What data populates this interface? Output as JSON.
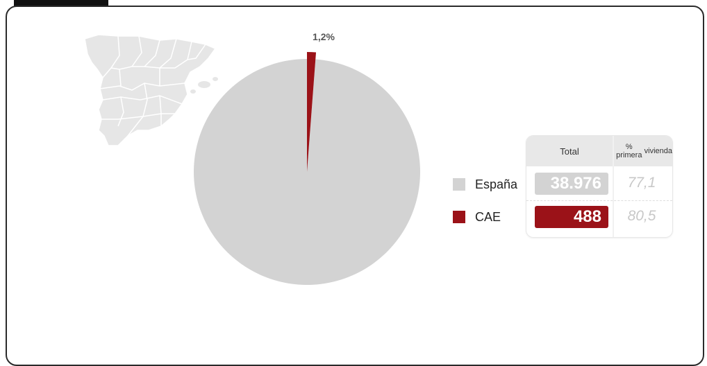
{
  "colors": {
    "spain": "#d3d3d3",
    "cae": "#9b1218",
    "map": "#e6e6e6",
    "map_border": "#ffffff"
  },
  "chart_data": {
    "type": "pie",
    "title": "",
    "slices": [
      {
        "label": "España",
        "value": 98.8
      },
      {
        "label": "CAE",
        "value": 1.2
      }
    ],
    "slice_labels": [
      "1,2%"
    ],
    "legend": [
      {
        "label": "España",
        "color": "#d3d3d3"
      },
      {
        "label": "CAE",
        "color": "#9b1218"
      }
    ],
    "table": {
      "headers": {
        "total": "Total",
        "pct_line1": "% primera",
        "pct_line2": "vivienda"
      },
      "rows": [
        {
          "label": "España",
          "total": "38.976",
          "pct": "77,1"
        },
        {
          "label": "CAE",
          "total": "488",
          "pct": "80,5"
        }
      ]
    }
  },
  "map": {
    "icon": "spain-map-icon"
  }
}
